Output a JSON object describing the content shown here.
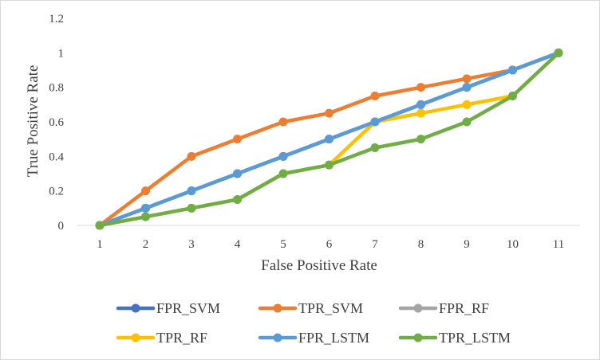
{
  "chart_data": {
    "type": "line",
    "xlabel": "False Positive Rate",
    "ylabel": "True Positive Rate",
    "categories": [
      "1",
      "2",
      "3",
      "4",
      "5",
      "6",
      "7",
      "8",
      "9",
      "10",
      "11"
    ],
    "ylim": [
      0,
      1.2
    ],
    "y_ticks": [
      "0",
      "0.2",
      "0.4",
      "0.6",
      "0.8",
      "1",
      "1.2"
    ],
    "grid": false,
    "legend_position": "bottom",
    "series": [
      {
        "name": "FPR_SVM",
        "color": "#4472c4",
        "values": [
          0,
          0.1,
          0.2,
          0.3,
          0.4,
          0.5,
          0.6,
          0.7,
          0.8,
          0.9,
          1
        ]
      },
      {
        "name": "TPR_SVM",
        "color": "#ed7d31",
        "values": [
          0,
          0.2,
          0.4,
          0.5,
          0.6,
          0.65,
          0.75,
          0.8,
          0.85,
          0.9,
          1
        ]
      },
      {
        "name": "FPR_RF",
        "color": "#a5a5a5",
        "values": [
          0,
          0.1,
          0.2,
          0.3,
          0.4,
          0.5,
          0.6,
          0.7,
          0.8,
          0.9,
          1
        ]
      },
      {
        "name": "TPR_RF",
        "color": "#ffc000",
        "values": [
          0,
          0.05,
          0.1,
          0.15,
          0.3,
          0.35,
          0.6,
          0.65,
          0.7,
          0.75,
          1
        ]
      },
      {
        "name": "FPR_LSTM",
        "color": "#5b9bd5",
        "values": [
          0,
          0.1,
          0.2,
          0.3,
          0.4,
          0.5,
          0.6,
          0.7,
          0.8,
          0.9,
          1
        ]
      },
      {
        "name": "TPR_LSTM",
        "color": "#70ad47",
        "values": [
          0,
          0.05,
          0.1,
          0.15,
          0.3,
          0.35,
          0.45,
          0.5,
          0.6,
          0.75,
          1
        ]
      }
    ]
  }
}
